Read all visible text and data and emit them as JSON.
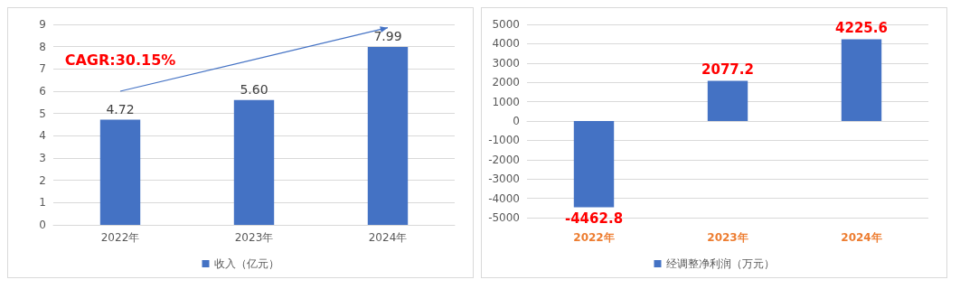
{
  "chart_data": [
    {
      "type": "bar",
      "categories": [
        "2022年",
        "2023年",
        "2024年"
      ],
      "series": [
        {
          "name": "收入（亿元）",
          "color": "#4472c4",
          "values": [
            4.72,
            5.6,
            7.99
          ],
          "value_labels": [
            "4.72",
            "5.60",
            "7.99"
          ]
        }
      ],
      "ylim": [
        0,
        9
      ],
      "yticks": [
        0,
        1,
        2,
        3,
        4,
        5,
        6,
        7,
        8,
        9
      ],
      "grid": "y",
      "legend": "bottom",
      "annotations": [
        "CAGR:30.15%"
      ]
    },
    {
      "type": "bar",
      "categories": [
        "2022年",
        "2023年",
        "2024年"
      ],
      "series": [
        {
          "name": "经调整净利润（万元）",
          "color": "#4472c4",
          "values": [
            -4462.8,
            2077.2,
            4225.6
          ]
        }
      ],
      "ylim": [
        -5000,
        5000
      ],
      "yticks": [
        -5000,
        -4000,
        -3000,
        -2000,
        -1000,
        0,
        1000,
        2000,
        3000,
        4000,
        5000
      ],
      "grid": "y",
      "legend": "bottom",
      "data_labels": true
    }
  ]
}
